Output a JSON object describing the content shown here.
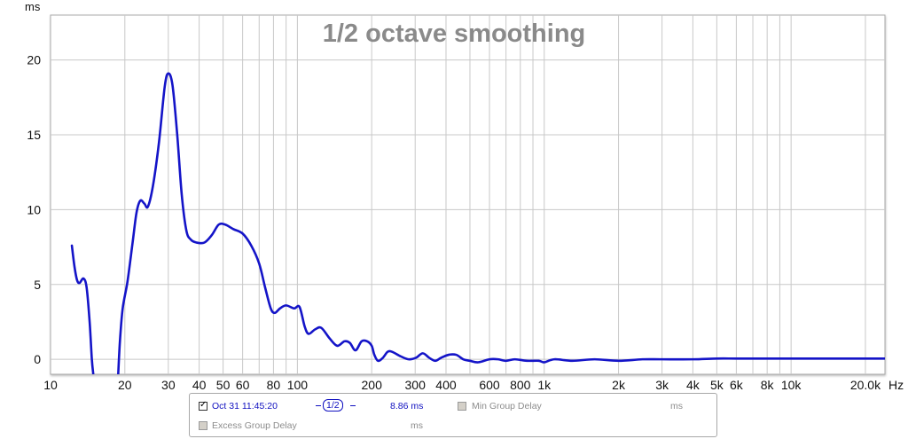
{
  "chart_data": {
    "type": "line",
    "title": "1/2 octave smoothing",
    "y_unit": "ms",
    "x_unit": "Hz",
    "x_scale": "log",
    "xlim": [
      10,
      24000
    ],
    "ylim": [
      -1,
      23
    ],
    "grid": true,
    "y_ticks": [
      0,
      5,
      10,
      15,
      20
    ],
    "x_ticks": [
      {
        "v": 10,
        "label": "10"
      },
      {
        "v": 20,
        "label": "20"
      },
      {
        "v": 30,
        "label": "30"
      },
      {
        "v": 40,
        "label": "40"
      },
      {
        "v": 50,
        "label": "50"
      },
      {
        "v": 60,
        "label": "60"
      },
      {
        "v": 80,
        "label": "80"
      },
      {
        "v": 100,
        "label": "100"
      },
      {
        "v": 200,
        "label": "200"
      },
      {
        "v": 300,
        "label": "300"
      },
      {
        "v": 400,
        "label": "400"
      },
      {
        "v": 600,
        "label": "600"
      },
      {
        "v": 800,
        "label": "800"
      },
      {
        "v": 1000,
        "label": "1k"
      },
      {
        "v": 2000,
        "label": "2k"
      },
      {
        "v": 3000,
        "label": "3k"
      },
      {
        "v": 4000,
        "label": "4k"
      },
      {
        "v": 5000,
        "label": "5k"
      },
      {
        "v": 6000,
        "label": "6k"
      },
      {
        "v": 8000,
        "label": "8k"
      },
      {
        "v": 10000,
        "label": "10k"
      },
      {
        "v": 20000,
        "label": "20.0k"
      }
    ],
    "series": [
      {
        "color": "#1414c8",
        "segments": [
          [
            [
              12.2,
              7.6
            ],
            [
              12.5,
              6.2
            ],
            [
              12.8,
              5.3
            ],
            [
              13.1,
              5.1
            ],
            [
              13.6,
              5.4
            ],
            [
              14.0,
              4.8
            ],
            [
              14.4,
              2.5
            ],
            [
              14.7,
              0.0
            ],
            [
              14.9,
              -1.0
            ]
          ],
          [
            [
              18.8,
              -1.0
            ],
            [
              19.1,
              1.2
            ],
            [
              19.6,
              3.4
            ],
            [
              20.5,
              5.2
            ],
            [
              21.5,
              7.8
            ],
            [
              22.3,
              9.8
            ],
            [
              23.1,
              10.6
            ],
            [
              24.0,
              10.4
            ],
            [
              24.8,
              10.2
            ],
            [
              26.0,
              11.6
            ],
            [
              27.5,
              14.5
            ],
            [
              29.0,
              18.2
            ],
            [
              30.0,
              19.1
            ],
            [
              31.2,
              18.3
            ],
            [
              32.6,
              15.0
            ],
            [
              34.0,
              11.0
            ],
            [
              35.5,
              8.6
            ],
            [
              37.0,
              8.0
            ],
            [
              39.0,
              7.8
            ],
            [
              42.0,
              7.8
            ],
            [
              45.0,
              8.3
            ],
            [
              48.0,
              9.0
            ],
            [
              51.0,
              9.0
            ],
            [
              55.0,
              8.7
            ],
            [
              60.0,
              8.4
            ],
            [
              65.0,
              7.6
            ],
            [
              70.0,
              6.4
            ],
            [
              74.0,
              4.8
            ],
            [
              78.0,
              3.4
            ],
            [
              81.0,
              3.1
            ],
            [
              85.0,
              3.4
            ],
            [
              90.0,
              3.6
            ],
            [
              97.0,
              3.4
            ],
            [
              102.0,
              3.5
            ],
            [
              107.0,
              2.2
            ],
            [
              111.0,
              1.7
            ],
            [
              118.0,
              2.0
            ],
            [
              125.0,
              2.1
            ],
            [
              135.0,
              1.4
            ],
            [
              145.0,
              0.9
            ],
            [
              155.0,
              1.2
            ],
            [
              163.0,
              1.1
            ],
            [
              172.0,
              0.6
            ],
            [
              182.0,
              1.2
            ],
            [
              192.0,
              1.2
            ],
            [
              200.0,
              0.9
            ],
            [
              205.0,
              0.3
            ],
            [
              212.0,
              -0.1
            ],
            [
              222.0,
              0.1
            ],
            [
              232.0,
              0.5
            ],
            [
              242.0,
              0.5
            ],
            [
              262.0,
              0.2
            ],
            [
              282.0,
              0.0
            ],
            [
              302.0,
              0.1
            ],
            [
              322.0,
              0.4
            ],
            [
              342.0,
              0.1
            ],
            [
              362.0,
              -0.1
            ],
            [
              382.0,
              0.1
            ],
            [
              410.0,
              0.3
            ],
            [
              440.0,
              0.3
            ],
            [
              470.0,
              0.0
            ],
            [
              500.0,
              -0.1
            ],
            [
              540.0,
              -0.2
            ],
            [
              600.0,
              0.0
            ],
            [
              650.0,
              0.0
            ],
            [
              700.0,
              -0.1
            ],
            [
              760.0,
              0.0
            ],
            [
              850.0,
              -0.1
            ],
            [
              950.0,
              -0.1
            ],
            [
              1000.0,
              -0.2
            ],
            [
              1100.0,
              0.0
            ],
            [
              1300.0,
              -0.1
            ],
            [
              1600.0,
              0.0
            ],
            [
              2000.0,
              -0.1
            ],
            [
              2500.0,
              0.0
            ],
            [
              3000.0,
              0.0
            ],
            [
              4000.0,
              0.0
            ],
            [
              5000.0,
              0.05
            ],
            [
              6000.0,
              0.05
            ],
            [
              8000.0,
              0.05
            ],
            [
              10000.0,
              0.05
            ],
            [
              14000.0,
              0.05
            ],
            [
              20000.0,
              0.05
            ],
            [
              24000.0,
              0.05
            ]
          ]
        ]
      }
    ]
  },
  "legend": {
    "row1": {
      "date": "Oct 31 11:45:20",
      "smoothing": "1/2",
      "value": "8.86 ms",
      "min_label": "Min Group Delay",
      "min_unit": "ms"
    },
    "row2": {
      "label": "Excess Group Delay",
      "unit": "ms"
    }
  },
  "colors": {
    "curve": "#1414c8",
    "grid": "#c8c8c8",
    "title": "#8a8a8a"
  }
}
